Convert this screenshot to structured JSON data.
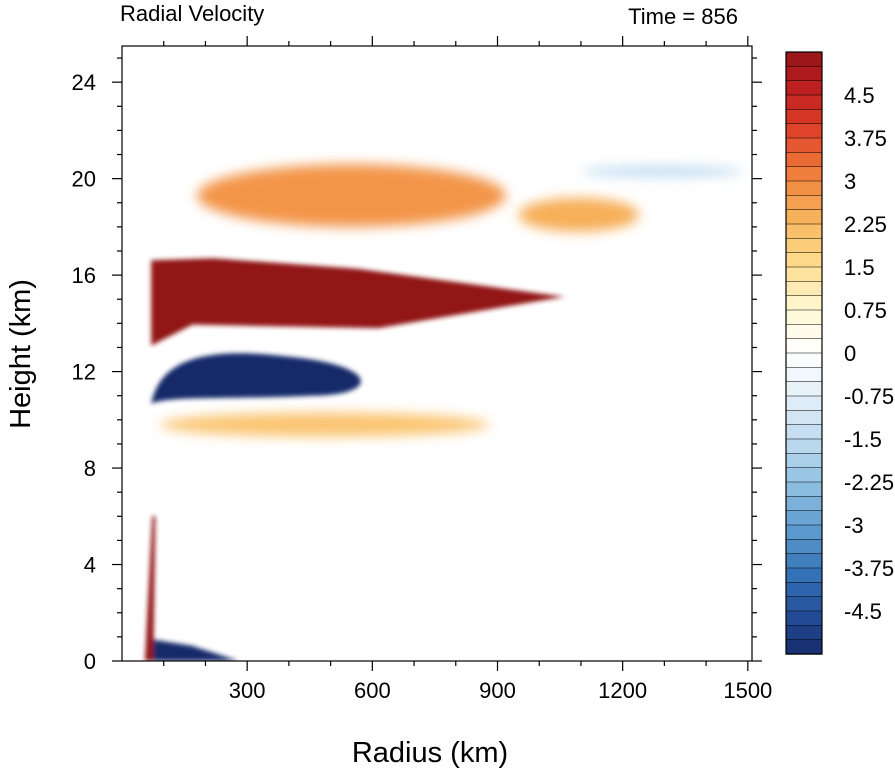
{
  "chart_data": {
    "type": "heatmap",
    "title_left": "Radial Velocity",
    "title_right": "Time = 856",
    "xlabel": "Radius (km)",
    "ylabel": "Height (km)",
    "xlim": [
      0,
      1510
    ],
    "ylim": [
      0,
      25.5
    ],
    "xticks": [
      300,
      600,
      900,
      1200,
      1500
    ],
    "xtick_labels": [
      "300",
      "600",
      "900",
      "1200",
      "1500"
    ],
    "yticks": [
      0,
      4,
      8,
      12,
      16,
      20,
      24
    ],
    "ytick_labels": [
      "0",
      "4",
      "8",
      "12",
      "16",
      "20",
      "24"
    ],
    "colorbar": {
      "min": -5.25,
      "max": 5.25,
      "step": 0.25,
      "labeled_levels": [
        4.5,
        3.75,
        3,
        2.25,
        1.5,
        0.75,
        0,
        -0.75,
        -1.5,
        -2.25,
        -3,
        -3.75,
        -4.5
      ],
      "labels": [
        "4.5",
        "3.75",
        "3",
        "2.25",
        "1.5",
        "0.75",
        "0",
        "-0.75",
        "-1.5",
        "-2.25",
        "-3",
        "-3.75",
        "-4.5"
      ],
      "color_min": "#172c6b",
      "color_zero": "#ffffff",
      "color_max": "#921518"
    },
    "features": [
      {
        "type": "outflow",
        "value": 5.25,
        "r": [
          70,
          1060
        ],
        "z": [
          13.8,
          16.7
        ]
      },
      {
        "type": "inflow",
        "value": -5.25,
        "r": [
          70,
          620
        ],
        "z": [
          11.0,
          12.8
        ]
      },
      {
        "type": "surface_inflow",
        "value": -5.25,
        "r": [
          55,
          280
        ],
        "z": [
          0,
          0.9
        ]
      },
      {
        "type": "eyewall_updraft",
        "value": 5.25,
        "r": [
          55,
          80
        ],
        "z": [
          0,
          6
        ]
      },
      {
        "type": "upper_outflow",
        "value": 2.8,
        "r": [
          180,
          920
        ],
        "z": [
          18.0,
          20.6
        ]
      },
      {
        "type": "mid_outflow",
        "value": 2.0,
        "r": [
          90,
          880
        ],
        "z": [
          9.3,
          10.3
        ]
      },
      {
        "type": "outer_outflow",
        "value": 2.4,
        "r": [
          950,
          1240
        ],
        "z": [
          17.8,
          19.2
        ]
      },
      {
        "type": "outer_inflow",
        "value": -1.6,
        "r": [
          1100,
          1490
        ],
        "z": [
          20.1,
          20.5
        ]
      }
    ]
  }
}
